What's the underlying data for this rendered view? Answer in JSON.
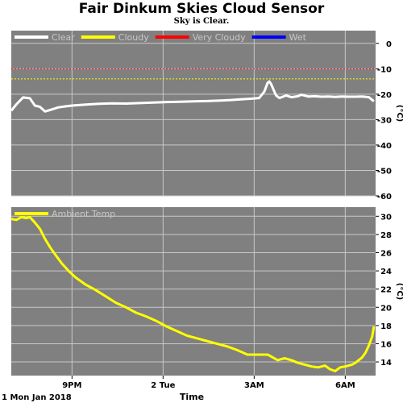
{
  "title": "Fair Dinkum Skies Cloud Sensor",
  "subtitle": "Sky is Clear.",
  "colors": {
    "background": "#ffffff",
    "plot_background": "#808080",
    "grid": "#c8c8c8",
    "clear": "#ffffff",
    "cloudy": "#ffff00",
    "very_cloudy": "#ff0000",
    "wet": "#0000ff",
    "ambient": "#ffff00"
  },
  "chart_data": [
    {
      "type": "line",
      "series": [
        {
          "name": "Clear",
          "color": "#ffffff",
          "x": [
            0.0,
            0.15,
            0.35,
            0.55,
            0.7,
            0.85,
            1.0,
            1.2,
            1.4,
            1.6,
            1.8,
            2.0,
            2.3,
            2.6,
            3.0,
            3.4,
            3.8,
            4.2,
            4.6,
            5.0,
            5.4,
            5.8,
            6.2,
            6.5,
            6.8,
            7.1,
            7.35,
            7.5,
            7.6,
            7.65,
            7.7,
            7.75,
            7.8,
            7.85,
            7.95,
            8.05,
            8.15,
            8.3,
            8.5,
            8.6,
            8.8,
            9.0,
            9.2,
            9.4,
            9.6,
            9.8,
            10.0,
            10.2,
            10.4,
            10.6,
            10.75
          ],
          "y": [
            -26.5,
            -24.0,
            -21.3,
            -21.6,
            -24.5,
            -25.0,
            -26.8,
            -26.0,
            -25.2,
            -24.8,
            -24.5,
            -24.3,
            -24.0,
            -23.8,
            -23.6,
            -23.7,
            -23.5,
            -23.3,
            -23.1,
            -23.0,
            -22.8,
            -22.7,
            -22.5,
            -22.3,
            -22.0,
            -21.8,
            -21.5,
            -19.0,
            -15.5,
            -15.0,
            -16.0,
            -17.5,
            -19.0,
            -20.5,
            -21.5,
            -21.0,
            -20.5,
            -21.2,
            -20.8,
            -20.2,
            -20.9,
            -20.8,
            -21.0,
            -20.9,
            -21.1,
            -20.9,
            -21.0,
            -21.0,
            -20.9,
            -21.2,
            -22.8
          ]
        },
        {
          "name": "Cloudy",
          "color": "#ffff00",
          "level": -14
        },
        {
          "name": "Very Cloudy",
          "color": "#ff0000",
          "level": -10
        },
        {
          "name": "Wet",
          "color": "#0000ff"
        }
      ],
      "yticks": [
        0,
        -10,
        -20,
        -30,
        -40,
        -50,
        -60
      ],
      "ylim": [
        -60,
        5
      ],
      "ylabel": "(°C)",
      "grid": true,
      "legend": "top-left"
    },
    {
      "type": "line",
      "series": [
        {
          "name": "Ambient Temp",
          "color": "#ffff00",
          "x": [
            0.0,
            0.15,
            0.3,
            0.45,
            0.55,
            0.7,
            0.85,
            1.0,
            1.15,
            1.3,
            1.5,
            1.7,
            1.9,
            2.2,
            2.5,
            2.8,
            3.1,
            3.4,
            3.7,
            4.0,
            4.3,
            4.6,
            4.9,
            5.2,
            5.5,
            5.8,
            6.1,
            6.4,
            6.7,
            7.0,
            7.3,
            7.6,
            7.9,
            8.1,
            8.3,
            8.5,
            8.7,
            8.9,
            9.1,
            9.3,
            9.45,
            9.6,
            9.75,
            9.9,
            10.0,
            10.1,
            10.2,
            10.3,
            10.4,
            10.5,
            10.6,
            10.7,
            10.75
          ],
          "y": [
            29.7,
            29.6,
            29.9,
            29.8,
            29.9,
            29.3,
            28.6,
            27.5,
            26.6,
            25.8,
            24.8,
            24.0,
            23.3,
            22.5,
            21.9,
            21.2,
            20.5,
            20.0,
            19.4,
            19.0,
            18.5,
            17.9,
            17.4,
            16.9,
            16.6,
            16.3,
            16.0,
            15.7,
            15.3,
            14.8,
            14.8,
            14.8,
            14.2,
            14.4,
            14.2,
            13.9,
            13.7,
            13.5,
            13.4,
            13.6,
            13.2,
            13.0,
            13.4,
            13.5,
            13.6,
            13.7,
            13.9,
            14.2,
            14.5,
            15.0,
            15.8,
            16.8,
            17.9
          ]
        }
      ],
      "yticks": [
        30,
        28,
        26,
        24,
        22,
        20,
        18,
        16,
        14
      ],
      "ylim": [
        12.5,
        31
      ],
      "ylabel": "(°C)",
      "grid": true,
      "legend": "top-left"
    }
  ],
  "x_axis": {
    "range": [
      0,
      10.8
    ],
    "ticks": [
      {
        "x": 1.8,
        "label": "9PM"
      },
      {
        "x": 4.5,
        "label": "2 Tue"
      },
      {
        "x": 7.2,
        "label": "3AM"
      },
      {
        "x": 9.9,
        "label": "6AM"
      }
    ],
    "start_label": "1 Mon Jan 2018",
    "xlabel": "Time"
  }
}
